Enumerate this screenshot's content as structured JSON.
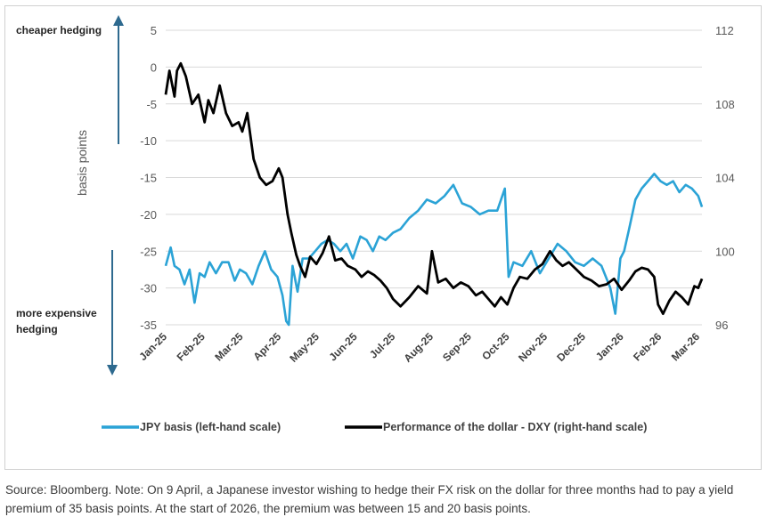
{
  "chart_data": {
    "type": "line",
    "left_axis": {
      "label": "basis points",
      "ylim": [
        -35,
        5
      ],
      "ticks": [
        5,
        0,
        -5,
        -10,
        -15,
        -20,
        -25,
        -30,
        -35
      ]
    },
    "right_axis": {
      "ylim": [
        96,
        112
      ],
      "ticks": [
        112,
        108,
        104,
        100,
        96
      ]
    },
    "x_ticks": [
      "Jan-25",
      "Feb-25",
      "Mar-25",
      "Apr-25",
      "May-25",
      "Jun-25",
      "Jul-25",
      "Aug-25",
      "Sep-25",
      "Oct-25",
      "Nov-25",
      "Dec-25",
      "Jan-26",
      "Feb-26",
      "Mar-26"
    ],
    "annotations": {
      "top": "cheaper hedging",
      "bottom_line1": "more expensive",
      "bottom_line2": "hedging"
    },
    "legend": {
      "placement": "bottom",
      "items": [
        "JPY basis (left-hand scale)",
        "Performance of the dollar - DXY (right-hand scale)"
      ]
    },
    "series": [
      {
        "name": "JPY basis (left-hand scale)",
        "axis": "left",
        "color": "#2ba3d6",
        "x": [
          "2025-01-01",
          "2025-01-05",
          "2025-01-08",
          "2025-01-12",
          "2025-01-16",
          "2025-01-20",
          "2025-01-24",
          "2025-01-28",
          "2025-02-01",
          "2025-02-05",
          "2025-02-10",
          "2025-02-15",
          "2025-02-20",
          "2025-02-25",
          "2025-03-01",
          "2025-03-06",
          "2025-03-11",
          "2025-03-16",
          "2025-03-21",
          "2025-03-26",
          "2025-03-31",
          "2025-04-04",
          "2025-04-07",
          "2025-04-09",
          "2025-04-12",
          "2025-04-16",
          "2025-04-20",
          "2025-04-25",
          "2025-04-30",
          "2025-05-05",
          "2025-05-10",
          "2025-05-15",
          "2025-05-20",
          "2025-05-25",
          "2025-05-30",
          "2025-06-05",
          "2025-06-10",
          "2025-06-15",
          "2025-06-20",
          "2025-06-25",
          "2025-07-01",
          "2025-07-07",
          "2025-07-14",
          "2025-07-21",
          "2025-07-28",
          "2025-08-04",
          "2025-08-11",
          "2025-08-18",
          "2025-08-25",
          "2025-09-01",
          "2025-09-08",
          "2025-09-15",
          "2025-09-22",
          "2025-09-28",
          "2025-10-01",
          "2025-10-05",
          "2025-10-12",
          "2025-10-19",
          "2025-10-26",
          "2025-11-02",
          "2025-11-09",
          "2025-11-16",
          "2025-11-23",
          "2025-11-30",
          "2025-12-07",
          "2025-12-14",
          "2025-12-21",
          "2025-12-25",
          "2025-12-29",
          "2026-01-01",
          "2026-01-05",
          "2026-01-10",
          "2026-01-15",
          "2026-01-20",
          "2026-01-25",
          "2026-01-30",
          "2026-02-04",
          "2026-02-09",
          "2026-02-14",
          "2026-02-19",
          "2026-02-24",
          "2026-03-01",
          "2026-03-04"
        ],
        "values": [
          -27,
          -24.5,
          -27,
          -27.5,
          -29.5,
          -27.5,
          -32,
          -28,
          -28.5,
          -26.5,
          -28,
          -26.5,
          -26.5,
          -29,
          -27.5,
          -28,
          -29.5,
          -27,
          -25,
          -27.5,
          -28.5,
          -31,
          -34.5,
          -35,
          -27,
          -30.5,
          -26,
          -26,
          -25,
          -24,
          -23.5,
          -24,
          -25,
          -24,
          -26,
          -23,
          -23.5,
          -25,
          -23,
          -23.5,
          -22.5,
          -22,
          -20.5,
          -19.5,
          -18,
          -18.5,
          -17.5,
          -16,
          -18.5,
          -19,
          -20,
          -19.5,
          -19.5,
          -16.5,
          -28.5,
          -26.5,
          -27,
          -25,
          -28,
          -26,
          -24,
          -25,
          -26.5,
          -27,
          -26,
          -27,
          -30,
          -33.5,
          -26,
          -25,
          -22,
          -18,
          -16.5,
          -15.5,
          -14.5,
          -15.5,
          -16,
          -15.5,
          -17,
          -16,
          -16.5,
          -17.5,
          -19
        ]
      },
      {
        "name": "Performance of the dollar - DXY (right-hand scale)",
        "axis": "right",
        "color": "#000000",
        "x": [
          "2025-01-01",
          "2025-01-04",
          "2025-01-08",
          "2025-01-10",
          "2025-01-13",
          "2025-01-17",
          "2025-01-22",
          "2025-01-27",
          "2025-02-01",
          "2025-02-04",
          "2025-02-08",
          "2025-02-13",
          "2025-02-18",
          "2025-02-23",
          "2025-02-28",
          "2025-03-03",
          "2025-03-07",
          "2025-03-12",
          "2025-03-17",
          "2025-03-22",
          "2025-03-27",
          "2025-04-01",
          "2025-04-04",
          "2025-04-08",
          "2025-04-11",
          "2025-04-15",
          "2025-04-18",
          "2025-04-22",
          "2025-04-26",
          "2025-05-01",
          "2025-05-06",
          "2025-05-11",
          "2025-05-16",
          "2025-05-21",
          "2025-05-26",
          "2025-06-01",
          "2025-06-06",
          "2025-06-11",
          "2025-06-16",
          "2025-06-21",
          "2025-06-26",
          "2025-07-01",
          "2025-07-07",
          "2025-07-14",
          "2025-07-21",
          "2025-07-28",
          "2025-08-01",
          "2025-08-06",
          "2025-08-12",
          "2025-08-18",
          "2025-08-24",
          "2025-08-30",
          "2025-09-05",
          "2025-09-10",
          "2025-09-15",
          "2025-09-20",
          "2025-09-25",
          "2025-09-30",
          "2025-10-05",
          "2025-10-10",
          "2025-10-16",
          "2025-10-22",
          "2025-10-28",
          "2025-11-03",
          "2025-11-08",
          "2025-11-13",
          "2025-11-18",
          "2025-11-24",
          "2025-11-30",
          "2025-12-06",
          "2025-12-12",
          "2025-12-18",
          "2025-12-24",
          "2025-12-30",
          "2026-01-05",
          "2026-01-10",
          "2026-01-15",
          "2026-01-20",
          "2026-01-25",
          "2026-01-28",
          "2026-02-01",
          "2026-02-06",
          "2026-02-11",
          "2026-02-16",
          "2026-02-21",
          "2026-02-26",
          "2026-03-01",
          "2026-03-04"
        ],
        "values": [
          108.5,
          109.8,
          108.4,
          109.8,
          110.2,
          109.5,
          108.0,
          108.5,
          107.0,
          108.2,
          107.5,
          109.0,
          107.5,
          106.8,
          107.0,
          106.5,
          107.5,
          105.0,
          104.0,
          103.6,
          103.8,
          104.5,
          104.0,
          102.0,
          101.0,
          99.8,
          99.2,
          98.6,
          99.7,
          99.3,
          99.9,
          100.8,
          99.5,
          99.6,
          99.2,
          99.0,
          98.6,
          98.9,
          98.7,
          98.4,
          98.0,
          97.4,
          97.0,
          97.5,
          98.1,
          97.7,
          100.0,
          98.3,
          98.5,
          98.0,
          98.3,
          98.1,
          97.6,
          97.8,
          97.4,
          97.0,
          97.5,
          97.1,
          98.0,
          98.6,
          98.5,
          99.0,
          99.3,
          100.0,
          99.5,
          99.2,
          99.4,
          99.0,
          98.6,
          98.4,
          98.1,
          98.2,
          98.5,
          97.9,
          98.4,
          98.9,
          99.1,
          99.0,
          98.6,
          97.1,
          96.6,
          97.3,
          97.8,
          97.5,
          97.1,
          98.1,
          98.0,
          98.5
        ]
      }
    ]
  },
  "caption": "Source: Bloomberg. Note: On 9 April, a Japanese investor wishing to hedge their FX risk on the dollar for three months had to pay a yield premium of 35 basis points. At the start of 2026, the premium was between 15 and 20 basis points."
}
